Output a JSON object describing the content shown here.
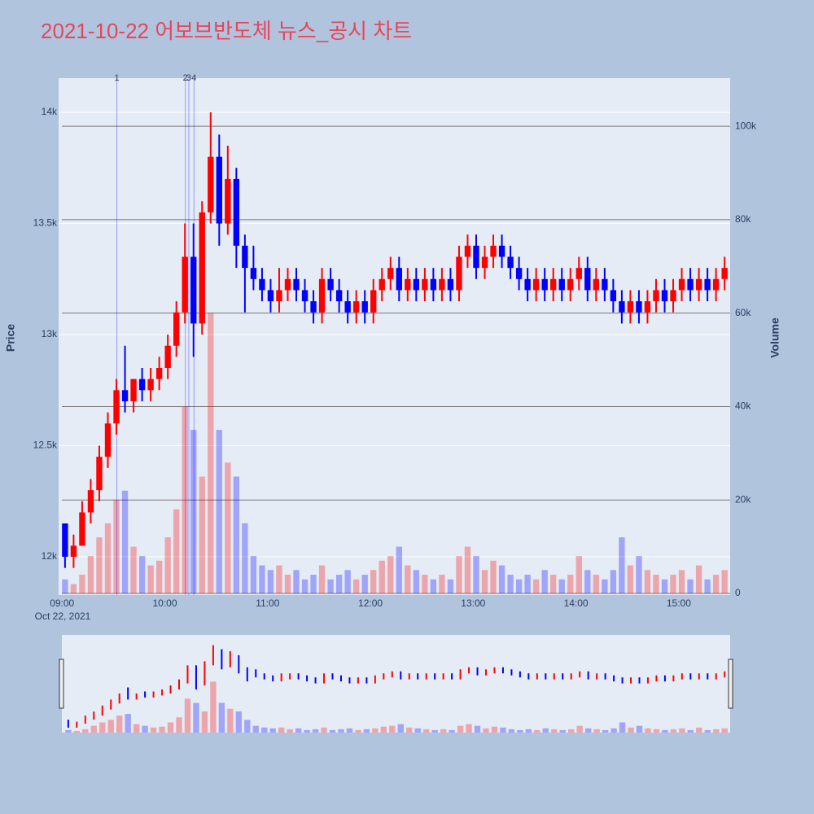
{
  "chart_data": {
    "type": "candlestick",
    "title": "2021-10-22 어보브반도체 뉴스_공시 차트",
    "y_axis_label": "Price",
    "y2_axis_label": "Volume",
    "x_date_label": "Oct 22, 2021",
    "up_color": "#ff0000",
    "down_color": "#0000ff",
    "x": [
      "09:00",
      "09:05",
      "09:10",
      "09:15",
      "09:20",
      "09:25",
      "09:30",
      "09:35",
      "09:40",
      "09:45",
      "09:50",
      "09:55",
      "10:00",
      "10:05",
      "10:10",
      "10:15",
      "10:20",
      "10:25",
      "10:30",
      "10:35",
      "10:40",
      "10:45",
      "10:50",
      "10:55",
      "11:00",
      "11:05",
      "11:10",
      "11:15",
      "11:20",
      "11:25",
      "11:30",
      "11:35",
      "11:40",
      "11:45",
      "11:50",
      "11:55",
      "12:00",
      "12:05",
      "12:10",
      "12:15",
      "12:20",
      "12:25",
      "12:30",
      "12:35",
      "12:40",
      "12:45",
      "12:50",
      "12:55",
      "13:00",
      "13:05",
      "13:10",
      "13:15",
      "13:20",
      "13:25",
      "13:30",
      "13:35",
      "13:40",
      "13:45",
      "13:50",
      "13:55",
      "14:00",
      "14:05",
      "14:10",
      "14:15",
      "14:20",
      "14:25",
      "14:30",
      "14:35",
      "14:40",
      "14:45",
      "14:50",
      "14:55",
      "15:00",
      "15:05",
      "15:10",
      "15:15",
      "15:20",
      "15:25"
    ],
    "open": [
      12150,
      12000,
      12050,
      12200,
      12300,
      12450,
      12600,
      12750,
      12700,
      12800,
      12750,
      12800,
      12850,
      12950,
      13100,
      13350,
      13050,
      13550,
      13800,
      13500,
      13700,
      13400,
      13300,
      13250,
      13200,
      13150,
      13200,
      13250,
      13200,
      13150,
      13100,
      13250,
      13200,
      13150,
      13100,
      13150,
      13100,
      13200,
      13250,
      13300,
      13200,
      13250,
      13200,
      13250,
      13200,
      13250,
      13200,
      13350,
      13400,
      13300,
      13350,
      13400,
      13350,
      13300,
      13250,
      13200,
      13250,
      13200,
      13250,
      13200,
      13250,
      13300,
      13200,
      13250,
      13200,
      13150,
      13100,
      13150,
      13100,
      13150,
      13200,
      13150,
      13200,
      13250,
      13200,
      13250,
      13200,
      13250
    ],
    "high": [
      12150,
      12100,
      12250,
      12350,
      12500,
      12650,
      12800,
      12950,
      12800,
      12850,
      12850,
      12900,
      13000,
      13150,
      13500,
      13500,
      13600,
      14000,
      13900,
      13850,
      13750,
      13450,
      13400,
      13300,
      13250,
      13300,
      13300,
      13300,
      13250,
      13200,
      13300,
      13300,
      13250,
      13200,
      13200,
      13200,
      13250,
      13300,
      13350,
      13350,
      13300,
      13300,
      13300,
      13300,
      13300,
      13300,
      13400,
      13450,
      13450,
      13400,
      13450,
      13450,
      13400,
      13350,
      13300,
      13300,
      13300,
      13300,
      13300,
      13300,
      13350,
      13350,
      13300,
      13300,
      13250,
      13200,
      13200,
      13200,
      13200,
      13250,
      13250,
      13250,
      13300,
      13300,
      13300,
      13300,
      13300,
      13350
    ],
    "low": [
      11950,
      11950,
      12050,
      12150,
      12250,
      12400,
      12550,
      12650,
      12650,
      12700,
      12700,
      12750,
      12800,
      12900,
      13050,
      12900,
      13000,
      13500,
      13400,
      13450,
      13300,
      13100,
      13200,
      13150,
      13100,
      13100,
      13150,
      13150,
      13100,
      13050,
      13050,
      13150,
      13100,
      13050,
      13050,
      13050,
      13050,
      13150,
      13200,
      13150,
      13150,
      13150,
      13150,
      13150,
      13150,
      13150,
      13150,
      13300,
      13250,
      13250,
      13300,
      13300,
      13250,
      13200,
      13150,
      13150,
      13150,
      13150,
      13150,
      13150,
      13200,
      13150,
      13150,
      13150,
      13100,
      13050,
      13050,
      13050,
      13050,
      13100,
      13100,
      13100,
      13150,
      13150,
      13150,
      13150,
      13150,
      13200
    ],
    "close": [
      12000,
      12050,
      12200,
      12300,
      12450,
      12600,
      12750,
      12700,
      12800,
      12750,
      12800,
      12850,
      12950,
      13100,
      13350,
      13050,
      13550,
      13800,
      13500,
      13700,
      13400,
      13300,
      13250,
      13200,
      13150,
      13200,
      13250,
      13200,
      13150,
      13100,
      13250,
      13200,
      13150,
      13100,
      13150,
      13100,
      13200,
      13250,
      13300,
      13200,
      13250,
      13200,
      13250,
      13200,
      13250,
      13200,
      13350,
      13400,
      13300,
      13350,
      13400,
      13350,
      13300,
      13250,
      13200,
      13250,
      13200,
      13250,
      13200,
      13250,
      13300,
      13200,
      13250,
      13200,
      13150,
      13100,
      13150,
      13100,
      13150,
      13200,
      13150,
      13200,
      13250,
      13200,
      13250,
      13200,
      13250,
      13300
    ],
    "volume": [
      3000,
      2000,
      4000,
      8000,
      12000,
      15000,
      20000,
      22000,
      10000,
      8000,
      6000,
      7000,
      12000,
      18000,
      40000,
      35000,
      25000,
      60000,
      35000,
      28000,
      25000,
      15000,
      8000,
      6000,
      5000,
      6000,
      4000,
      5000,
      3000,
      4000,
      6000,
      3000,
      4000,
      5000,
      3000,
      4000,
      5000,
      7000,
      8000,
      10000,
      6000,
      5000,
      4000,
      3000,
      4000,
      3000,
      8000,
      10000,
      8000,
      5000,
      7000,
      6000,
      4000,
      3000,
      4000,
      3000,
      5000,
      4000,
      3000,
      4000,
      8000,
      5000,
      4000,
      3000,
      5000,
      12000,
      6000,
      8000,
      5000,
      4000,
      3000,
      4000,
      5000,
      3000,
      6000,
      3000,
      4000,
      5000
    ],
    "annotations": [
      {
        "x": "09:32",
        "label": "1"
      },
      {
        "x": "10:12",
        "label": "2"
      },
      {
        "x": "10:14",
        "label": "3"
      },
      {
        "x": "10:17",
        "label": "4"
      }
    ],
    "xlim": [
      "08:58",
      "15:30"
    ],
    "xticks": [
      "09:00",
      "10:00",
      "11:00",
      "12:00",
      "13:00",
      "14:00",
      "15:00"
    ],
    "ylim": [
      11828,
      14154
    ],
    "yticks": [
      {
        "value": 12000,
        "label": "12k"
      },
      {
        "value": 12500,
        "label": "12.5k"
      },
      {
        "value": 13000,
        "label": "13k"
      },
      {
        "value": 13500,
        "label": "13.5k"
      },
      {
        "value": 14000,
        "label": "14k"
      }
    ],
    "y2lim": [
      0,
      110300
    ],
    "y2ticks": [
      0,
      {
        "value": 20000,
        "label": "20k"
      },
      {
        "value": 40000,
        "label": "40k"
      },
      {
        "value": 60000,
        "label": "60k"
      },
      {
        "value": 80000,
        "label": "80k"
      },
      {
        "value": 100000,
        "label": "100k"
      }
    ]
  }
}
